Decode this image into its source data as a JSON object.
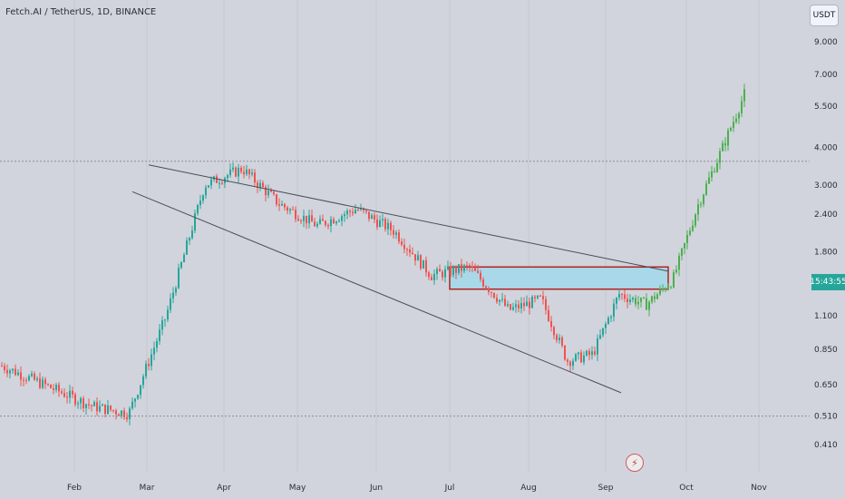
{
  "title": "Fetch.AI / TetherUS, 1D, BINANCE",
  "unit_button": "USDT",
  "price_countdown": "15:43:55",
  "alert_icon": "lightning-icon",
  "colors": {
    "background": "#d1d4dc",
    "up": "#26a69a",
    "down": "#ef5350",
    "breakout": "#4caf50",
    "zone_fill": "#a9d8e8",
    "zone_border": "#b22222",
    "trendline": "#4a4e59",
    "text": "#2a2e39"
  },
  "chart_data": {
    "type": "candlestick",
    "y_scale": "log",
    "y_ticks": [
      "9.000",
      "7.000",
      "5.500",
      "4.000",
      "3.000",
      "2.400",
      "1.800",
      "1.100",
      "0.850",
      "0.650",
      "0.510",
      "0.410"
    ],
    "x_ticks": [
      "Feb",
      "Mar",
      "Apr",
      "May",
      "Jun",
      "Jul",
      "Aug",
      "Sep",
      "Oct",
      "Nov"
    ],
    "horizontal_levels": [
      3.6,
      0.51
    ],
    "zone": {
      "from": "Jul",
      "to": "late Sep",
      "low": 1.35,
      "high": 1.6
    },
    "trendlines": [
      "upper descending resistance",
      "lower descending support"
    ],
    "path": [
      [
        "Jan",
        0.75
      ],
      [
        "Feb",
        0.55
      ],
      [
        "Feb",
        0.52
      ],
      [
        "Mar",
        1.1
      ],
      [
        "Mar",
        3.0
      ],
      [
        "Apr",
        3.4
      ],
      [
        "Apr",
        2.6
      ],
      [
        "May",
        2.2
      ],
      [
        "May",
        2.5
      ],
      [
        "Jun",
        2.1
      ],
      [
        "Jun",
        1.5
      ],
      [
        "Jul",
        1.6
      ],
      [
        "Jul",
        1.15
      ],
      [
        "Aug",
        1.25
      ],
      [
        "Aug",
        0.78
      ],
      [
        "Aug",
        0.82
      ],
      [
        "Sep",
        1.3
      ],
      [
        "Sep",
        1.2
      ],
      [
        "Sep",
        1.45
      ],
      [
        "Oct",
        2.6
      ],
      [
        "Oct",
        4.0
      ],
      [
        "Oct",
        6.3
      ]
    ]
  }
}
